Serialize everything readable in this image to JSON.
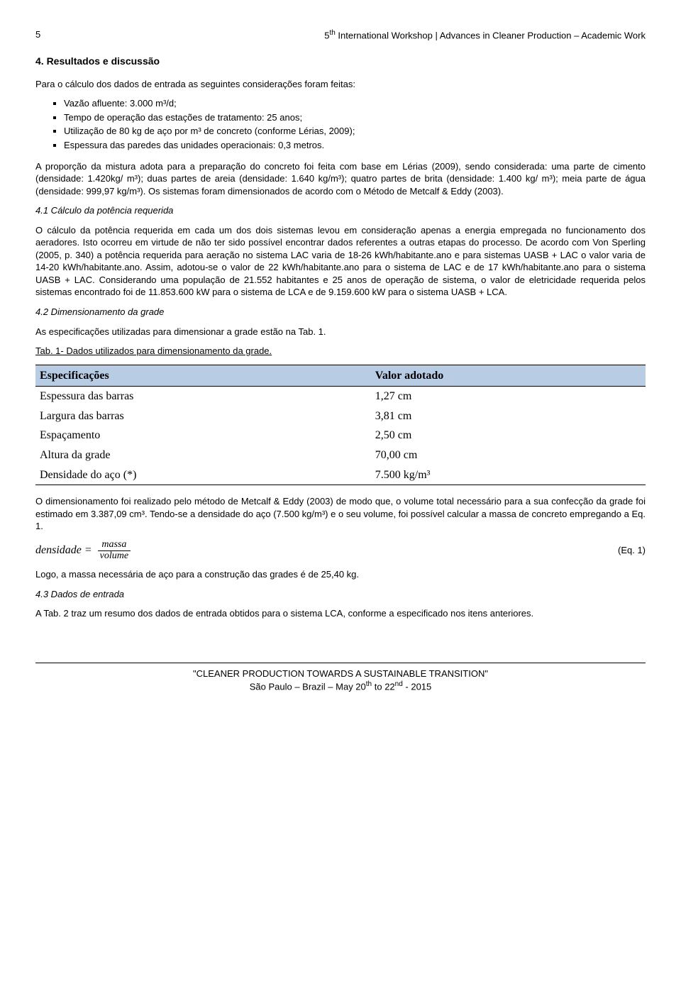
{
  "header": {
    "page_number": "5",
    "title_prefix": "5",
    "title_sup": "th",
    "title_rest": " International Workshop | Advances in Cleaner Production – Academic Work"
  },
  "section4_title": "4. Resultados e discussão",
  "intro_para": "Para o cálculo dos dados de entrada as seguintes considerações foram feitas:",
  "bullets": [
    "Vazão afluente: 3.000 m³/d;",
    "Tempo de operação das estações de tratamento: 25 anos;",
    "Utilização de 80 kg de aço por m³ de concreto (conforme Lérias, 2009);",
    "Espessura das paredes das unidades operacionais: 0,3 metros."
  ],
  "para_proporcao": "A proporção da mistura adota para a preparação do concreto foi feita com base em Lérias (2009), sendo considerada: uma parte de cimento (densidade: 1.420kg/ m³); duas partes de areia (densidade: 1.640 kg/m³); quatro partes de brita (densidade: 1.400 kg/ m³); meia parte de água (densidade: 999,97 kg/m³). Os sistemas foram dimensionados de acordo com o Método de Metcalf & Eddy (2003).",
  "sec41_title": "4.1 Cálculo da potência requerida",
  "para_41": "O cálculo da potência requerida em cada um dos dois sistemas levou em consideração apenas a energia empregada no funcionamento dos aeradores. Isto ocorreu em virtude de não ter sido possível encontrar dados referentes a outras etapas do processo. De acordo com Von Sperling (2005, p. 340) a potência requerida para aeração no sistema LAC varia de 18-26 kWh/habitante.ano e para sistemas UASB + LAC o valor varia de 14-20 kWh/habitante.ano. Assim, adotou-se o valor de 22 kWh/habitante.ano para o sistema de LAC e de 17 kWh/habitante.ano para o sistema UASB + LAC. Considerando uma população de 21.552 habitantes e 25 anos de operação de sistema, o valor de eletricidade requerida pelos sistemas encontrado foi de 11.853.600 kW para o sistema de LCA e de 9.159.600 kW para o sistema UASB + LCA.",
  "sec42_title": "4.2 Dimensionamento da grade",
  "para_42_intro": "As especificações utilizadas para dimensionar a grade estão na Tab. 1.",
  "tab1_caption": "Tab. 1- Dados utilizados para dimensionamento da grade.",
  "table1": {
    "header_bg": "#b8cce4",
    "columns": [
      "Especificações",
      "Valor adotado"
    ],
    "rows": [
      [
        "Espessura das barras",
        "1,27 cm"
      ],
      [
        "Largura das barras",
        "3,81 cm"
      ],
      [
        "Espaçamento",
        "2,50 cm"
      ],
      [
        "Altura da grade",
        "70,00 cm"
      ],
      [
        "Densidade do aço (*)",
        "7.500 kg/m³"
      ]
    ]
  },
  "para_42_after": "O dimensionamento foi realizado pelo método de Metcalf & Eddy (2003) de modo que, o volume total necessário para a sua confecção da grade foi estimado em 3.387,09 cm³. Tendo-se a densidade do aço (7.500 kg/m³) e o seu volume, foi possível calcular a massa de concreto empregando a Eq. 1.",
  "equation": {
    "lhs": "densidade =",
    "num": "massa",
    "den": "volume",
    "label": "(Eq. 1)"
  },
  "para_logo": "Logo, a massa necessária de aço para a construção das grades é de 25,40 kg.",
  "sec43_title": "4.3 Dados de entrada",
  "para_43": "A Tab. 2 traz um resumo dos dados de entrada obtidos para o sistema LCA, conforme a especificado nos itens anteriores.",
  "footer": {
    "line1": "\"CLEANER PRODUCTION TOWARDS A SUSTAINABLE TRANSITION\"",
    "line2_a": "São Paulo – Brazil – May 20",
    "line2_b": " to 22",
    "line2_c": " - 2015",
    "sup1": "th",
    "sup2": "nd"
  }
}
